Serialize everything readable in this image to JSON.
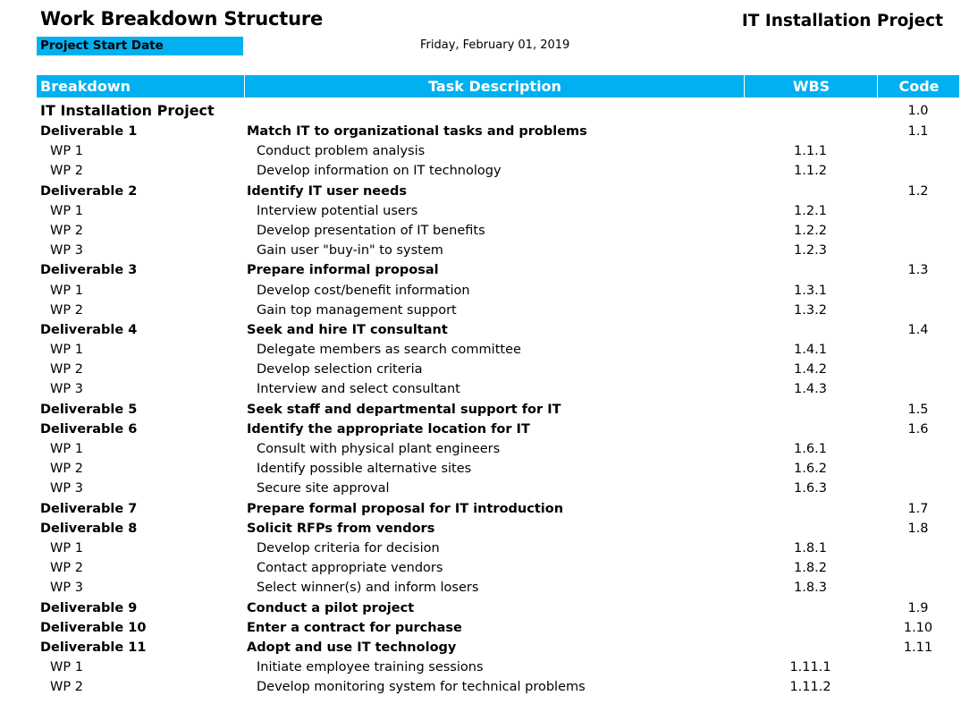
{
  "header": {
    "title": "Work Breakdown Structure",
    "project_title": "IT Installation Project",
    "start_label": "Project Start Date",
    "start_date": "Friday, February 01, 2019"
  },
  "columns": {
    "breakdown": "Breakdown",
    "task": "Task Description",
    "wbs": "WBS",
    "code": "Code"
  },
  "rows": [
    {
      "type": "project",
      "breakdown": "IT Installation Project",
      "task": "",
      "wbs": "",
      "code": "1.0"
    },
    {
      "type": "deliv",
      "breakdown": "Deliverable 1",
      "task": "Match IT to organizational tasks and problems",
      "wbs": "",
      "code": "1.1"
    },
    {
      "type": "wp",
      "breakdown": "WP 1",
      "task": "Conduct problem analysis",
      "wbs": "1.1.1",
      "code": ""
    },
    {
      "type": "wp",
      "breakdown": "WP 2",
      "task": "Develop information on IT technology",
      "wbs": "1.1.2",
      "code": ""
    },
    {
      "type": "deliv",
      "breakdown": "Deliverable 2",
      "task": "Identify IT user needs",
      "wbs": "",
      "code": "1.2"
    },
    {
      "type": "wp",
      "breakdown": "WP 1",
      "task": "Interview potential users",
      "wbs": "1.2.1",
      "code": ""
    },
    {
      "type": "wp",
      "breakdown": "WP 2",
      "task": "Develop presentation of IT benefits",
      "wbs": "1.2.2",
      "code": ""
    },
    {
      "type": "wp",
      "breakdown": "WP 3",
      "task": "Gain user \"buy-in\" to system",
      "wbs": "1.2.3",
      "code": ""
    },
    {
      "type": "deliv",
      "breakdown": "Deliverable 3",
      "task": "Prepare informal proposal",
      "wbs": "",
      "code": "1.3"
    },
    {
      "type": "wp",
      "breakdown": "WP 1",
      "task": "Develop cost/benefit information",
      "wbs": "1.3.1",
      "code": ""
    },
    {
      "type": "wp",
      "breakdown": "WP 2",
      "task": "Gain top management support",
      "wbs": "1.3.2",
      "code": ""
    },
    {
      "type": "deliv",
      "breakdown": "Deliverable 4",
      "task": "Seek and hire IT consultant",
      "wbs": "",
      "code": "1.4"
    },
    {
      "type": "wp",
      "breakdown": "WP 1",
      "task": "Delegate members as search committee",
      "wbs": "1.4.1",
      "code": ""
    },
    {
      "type": "wp",
      "breakdown": "WP 2",
      "task": "Develop selection criteria",
      "wbs": "1.4.2",
      "code": ""
    },
    {
      "type": "wp",
      "breakdown": "WP 3",
      "task": "Interview and select consultant",
      "wbs": "1.4.3",
      "code": ""
    },
    {
      "type": "deliv",
      "breakdown": "Deliverable 5",
      "task": "Seek staff and departmental support for IT",
      "wbs": "",
      "code": "1.5"
    },
    {
      "type": "deliv",
      "breakdown": "Deliverable 6",
      "task": "Identify the appropriate location for IT",
      "wbs": "",
      "code": "1.6"
    },
    {
      "type": "wp",
      "breakdown": "WP 1",
      "task": "Consult with physical plant engineers",
      "wbs": "1.6.1",
      "code": ""
    },
    {
      "type": "wp",
      "breakdown": "WP 2",
      "task": "Identify possible alternative sites",
      "wbs": "1.6.2",
      "code": ""
    },
    {
      "type": "wp",
      "breakdown": "WP 3",
      "task": "Secure site approval",
      "wbs": "1.6.3",
      "code": ""
    },
    {
      "type": "deliv",
      "breakdown": "Deliverable 7",
      "task": "Prepare formal proposal for IT introduction",
      "wbs": "",
      "code": "1.7"
    },
    {
      "type": "deliv",
      "breakdown": "Deliverable 8",
      "task": "Solicit RFPs from vendors",
      "wbs": "",
      "code": "1.8"
    },
    {
      "type": "wp",
      "breakdown": "WP 1",
      "task": "Develop criteria for decision",
      "wbs": "1.8.1",
      "code": ""
    },
    {
      "type": "wp",
      "breakdown": "WP 2",
      "task": "Contact appropriate vendors",
      "wbs": "1.8.2",
      "code": ""
    },
    {
      "type": "wp",
      "breakdown": "WP 3",
      "task": "Select winner(s) and inform losers",
      "wbs": "1.8.3",
      "code": ""
    },
    {
      "type": "deliv",
      "breakdown": "Deliverable 9",
      "task": "Conduct a pilot project",
      "wbs": "",
      "code": "1.9"
    },
    {
      "type": "deliv",
      "breakdown": "Deliverable 10",
      "task": "Enter a contract for purchase",
      "wbs": "",
      "code": "1.10"
    },
    {
      "type": "deliv",
      "breakdown": "Deliverable 11",
      "task": "Adopt and use IT technology",
      "wbs": "",
      "code": "1.11"
    },
    {
      "type": "wp",
      "breakdown": "WP 1",
      "task": "Initiate employee training sessions",
      "wbs": "1.11.1",
      "code": ""
    },
    {
      "type": "wp",
      "breakdown": "WP 2",
      "task": "Develop monitoring system for technical problems",
      "wbs": "1.11.2",
      "code": ""
    }
  ]
}
